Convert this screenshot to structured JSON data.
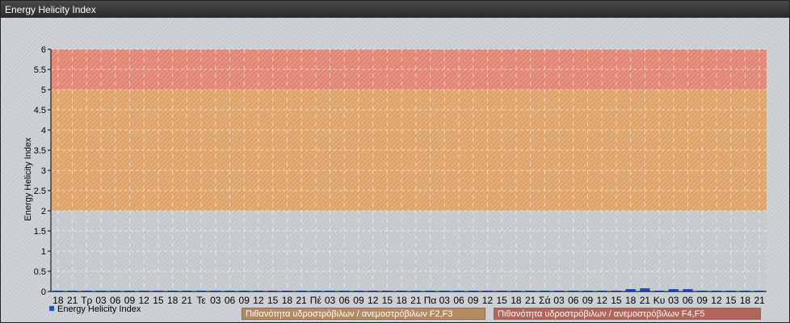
{
  "window": {
    "title": "Energy Helicity Index"
  },
  "chart_data": {
    "type": "bar",
    "title": "",
    "xlabel": "",
    "ylabel": "Energy Helicity Index",
    "ylim": [
      0,
      6
    ],
    "yticks": [
      "0",
      "0.5",
      "1",
      "1.5",
      "2",
      "2.5",
      "3",
      "3.5",
      "4",
      "4.5",
      "5",
      "5.5",
      "6"
    ],
    "grid": true,
    "categories": [
      "18",
      "21",
      "Τρ",
      "03",
      "06",
      "09",
      "12",
      "15",
      "18",
      "21",
      "Τε",
      "03",
      "06",
      "09",
      "12",
      "15",
      "18",
      "21",
      "Πέ",
      "03",
      "06",
      "09",
      "12",
      "15",
      "18",
      "21",
      "Πα",
      "03",
      "06",
      "09",
      "12",
      "15",
      "18",
      "21",
      "Σά",
      "03",
      "06",
      "09",
      "12",
      "15",
      "18",
      "21",
      "Κυ",
      "03",
      "06",
      "09",
      "12",
      "15",
      "18",
      "21"
    ],
    "series": [
      {
        "name": "Energy Helicity Index",
        "color": "#1a4fd6",
        "values": [
          0.02,
          0.02,
          0.02,
          0.02,
          0.02,
          0.02,
          0.02,
          0.02,
          0.02,
          0.02,
          0.02,
          0.02,
          0.02,
          0.02,
          0.02,
          0.02,
          0.02,
          0.02,
          0.02,
          0.02,
          0.02,
          0.02,
          0.02,
          0.02,
          0.02,
          0.02,
          0.02,
          0.02,
          0.02,
          0.02,
          0.02,
          0.02,
          0.02,
          0.02,
          0.02,
          0.02,
          0.02,
          0.02,
          0.02,
          0.02,
          0.06,
          0.08,
          0.02,
          0.06,
          0.06,
          0.02,
          0.02,
          0.02,
          0.02,
          0.02
        ]
      }
    ],
    "bands": [
      {
        "from": 2,
        "to": 5,
        "label": "Πιθανότητα υδροστρόβιλων / ανεμοστρόβιλων F2,F3",
        "color": "#e0a060"
      },
      {
        "from": 5,
        "to": 6,
        "label": "Πιθανότητα υδροστρόβιλων / ανεμοστρόβιλων F4,F5",
        "color": "#e4806a"
      }
    ],
    "legend": "bottom-left"
  }
}
